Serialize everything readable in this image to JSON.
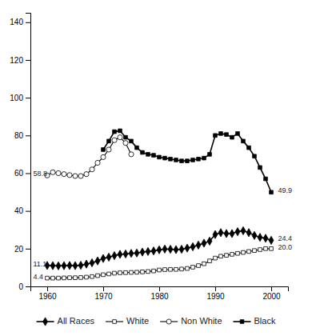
{
  "chart_data": {
    "type": "line",
    "x": [
      1960,
      1961,
      1962,
      1963,
      1964,
      1965,
      1966,
      1967,
      1968,
      1969,
      1970,
      1971,
      1972,
      1973,
      1974,
      1975,
      1976,
      1977,
      1978,
      1979,
      1980,
      1981,
      1982,
      1983,
      1984,
      1985,
      1986,
      1987,
      1988,
      1989,
      1990,
      1991,
      1992,
      1993,
      1994,
      1995,
      1996,
      1997,
      1998,
      1999,
      2000
    ],
    "series": [
      {
        "name": "All Races",
        "color": "#000000",
        "marker": "diamond",
        "values": [
          11.1,
          11.0,
          10.9,
          11.0,
          11.1,
          11.0,
          11.2,
          11.8,
          12.5,
          13.5,
          14.8,
          15.5,
          16.3,
          17.0,
          17.2,
          17.5,
          17.7,
          18.2,
          18.5,
          18.8,
          19.4,
          19.8,
          19.7,
          19.5,
          19.7,
          20.3,
          21.0,
          21.9,
          22.9,
          24.0,
          27.5,
          28.5,
          28.0,
          28.0,
          29.0,
          29.5,
          28.5,
          27.0,
          26.0,
          25.5,
          24.4
        ]
      },
      {
        "name": "White",
        "color": "#000000",
        "marker": "square-open",
        "values": [
          4.4,
          4.4,
          4.4,
          4.5,
          4.6,
          4.6,
          4.7,
          4.9,
          5.2,
          5.7,
          6.2,
          6.6,
          7.0,
          7.2,
          7.3,
          7.4,
          7.5,
          7.7,
          7.9,
          8.2,
          8.7,
          8.9,
          9.0,
          9.0,
          9.2,
          9.5,
          10.2,
          11.0,
          12.0,
          13.5,
          15.0,
          16.0,
          16.5,
          17.0,
          17.5,
          18.0,
          18.5,
          19.0,
          19.5,
          20.0,
          20.0
        ]
      },
      {
        "name": "Non White",
        "color": "#000000",
        "marker": "circle-open",
        "values": [
          58.8,
          60.5,
          60.0,
          59.5,
          59.0,
          58.5,
          58.5,
          59.5,
          62.0,
          65.5,
          68.5,
          72.5,
          77.5,
          79.0,
          76.0,
          70.0,
          null,
          null,
          null,
          null,
          null,
          null,
          null,
          null,
          null,
          null,
          null,
          null,
          null,
          null,
          null,
          null,
          null,
          null,
          null,
          null,
          null,
          null,
          null,
          null,
          null
        ]
      },
      {
        "name": "Black",
        "color": "#000000",
        "marker": "square",
        "values": [
          null,
          null,
          null,
          null,
          null,
          null,
          null,
          null,
          null,
          null,
          72.5,
          77.0,
          82.0,
          82.5,
          79.0,
          77.0,
          73.5,
          71.0,
          70.0,
          69.5,
          68.5,
          68.0,
          67.5,
          67.0,
          66.5,
          66.5,
          67.0,
          67.5,
          68.0,
          70.0,
          80.0,
          81.0,
          80.5,
          79.0,
          81.0,
          77.0,
          73.5,
          69.0,
          63.0,
          57.0,
          49.9
        ]
      }
    ],
    "annotations": [
      {
        "text": "58.8",
        "x": 1957.5,
        "y": 59.5
      },
      {
        "text": "49.9",
        "x": 2001.2,
        "y": 50.5
      },
      {
        "text": "11.1",
        "x": 1957.5,
        "y": 11.8
      },
      {
        "text": "4.4",
        "x": 1957.5,
        "y": 5.0
      },
      {
        "text": "24.4",
        "x": 2001.2,
        "y": 25.0
      },
      {
        "text": "20.0",
        "x": 2001.2,
        "y": 20.5
      }
    ],
    "xlim": [
      1957,
      2003
    ],
    "xticks": [
      1960,
      1970,
      1980,
      1990,
      2000
    ],
    "ylim": [
      0,
      145
    ],
    "yticks": [
      0,
      20,
      40,
      60,
      80,
      100,
      120,
      140
    ],
    "grid": false,
    "legend": "bottom"
  }
}
